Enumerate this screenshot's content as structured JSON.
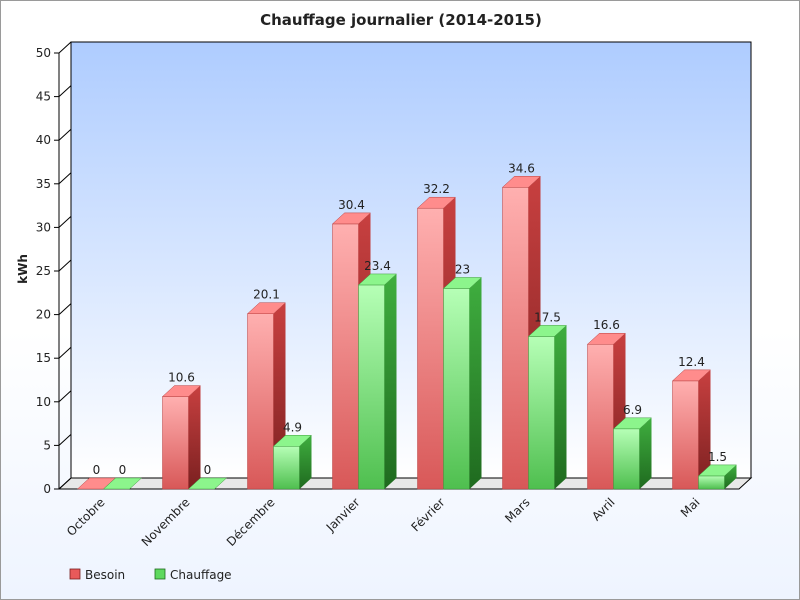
{
  "chart_data": {
    "type": "bar",
    "title": "Chauffage journalier (2014-2015)",
    "xlabel": "",
    "ylabel": "kWh",
    "ylim": [
      0,
      50
    ],
    "yticks": [
      0,
      5,
      10,
      15,
      20,
      25,
      30,
      35,
      40,
      45,
      50
    ],
    "categories": [
      "Octobre",
      "Novembre",
      "Décembre",
      "Janvier",
      "Février",
      "Mars",
      "Avril",
      "Mai"
    ],
    "series": [
      {
        "name": "Besoin",
        "values": [
          0,
          10.6,
          20.1,
          30.4,
          32.2,
          34.6,
          16.6,
          12.4
        ],
        "labels": [
          "0",
          "10.6",
          "20.1",
          "30.4",
          "32.2",
          "34.6",
          "16.6",
          "12.4"
        ]
      },
      {
        "name": "Chauffage",
        "values": [
          0,
          0,
          4.9,
          23.4,
          23,
          17.5,
          6.9,
          1.5
        ],
        "labels": [
          "0",
          "0",
          "4.9",
          "23.4",
          "23",
          "17.5",
          "6.9",
          "1.5"
        ]
      }
    ],
    "legend_position": "bottom-left",
    "grid": false,
    "style": "3d-bars"
  },
  "colors": {
    "besoin": "#e85a5a",
    "chauffage": "#5ed85e",
    "plot_bg_top": "#b3d0ff",
    "plot_bg_bottom": "#ffffff"
  }
}
